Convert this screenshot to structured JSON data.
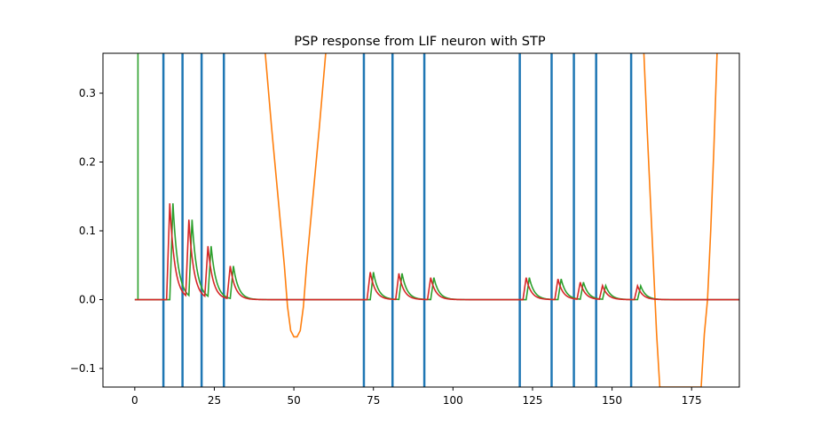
{
  "chart_data": {
    "type": "line",
    "title": "PSP response from LIF neuron with STP",
    "xlabel": "",
    "ylabel": "",
    "xlim": [
      -10,
      190
    ],
    "ylim": [
      -0.127,
      0.358
    ],
    "x_ticks": [
      0,
      25,
      50,
      75,
      100,
      125,
      150,
      175
    ],
    "x_tick_labels": [
      "0",
      "25",
      "50",
      "75",
      "100",
      "125",
      "150",
      "175"
    ],
    "y_ticks": [
      -0.1,
      0.0,
      0.1,
      0.2,
      0.3
    ],
    "y_tick_labels": [
      "−0.1",
      "0.0",
      "0.1",
      "0.2",
      "0.3"
    ],
    "grid": false,
    "legend": "none",
    "colors": {
      "spikes": "#1f77b4",
      "membrane": "#ff7f0e",
      "psp_a": "#2ca02c",
      "psp_b": "#d62728"
    },
    "spike_times": [
      9,
      15,
      21,
      28,
      72,
      81,
      91,
      121,
      131,
      138,
      145,
      156
    ],
    "series": [
      {
        "color_key": "membrane",
        "x": [
          41,
          43,
          45,
          47,
          48,
          49,
          50,
          51,
          52,
          53,
          54,
          56,
          58,
          60,
          160,
          161,
          162,
          163,
          164,
          165,
          178,
          179,
          180,
          181,
          182,
          183
        ],
        "y": [
          0.358,
          0.25,
          0.15,
          0.05,
          -0.01,
          -0.045,
          -0.054,
          -0.054,
          -0.045,
          -0.01,
          0.05,
          0.15,
          0.25,
          0.358,
          0.358,
          0.25,
          0.15,
          0.05,
          -0.05,
          -0.127,
          -0.127,
          -0.05,
          0.0,
          0.1,
          0.22,
          0.358
        ]
      },
      {
        "color_key": "psp_a",
        "peaks": [
          [
            12,
            0.14
          ],
          [
            18,
            0.113
          ],
          [
            24,
            0.075
          ],
          [
            31,
            0.048
          ],
          [
            75,
            0.04
          ],
          [
            84,
            0.038
          ],
          [
            94,
            0.032
          ],
          [
            124,
            0.032
          ],
          [
            134,
            0.03
          ],
          [
            141,
            0.025
          ],
          [
            148,
            0.02
          ],
          [
            159,
            0.02
          ]
        ]
      },
      {
        "color_key": "psp_b",
        "peaks": [
          [
            11,
            0.14
          ],
          [
            17,
            0.113
          ],
          [
            23,
            0.075
          ],
          [
            30,
            0.048
          ],
          [
            74,
            0.04
          ],
          [
            83,
            0.038
          ],
          [
            93,
            0.032
          ],
          [
            123,
            0.032
          ],
          [
            133,
            0.03
          ],
          [
            140,
            0.025
          ],
          [
            147,
            0.02
          ],
          [
            158,
            0.02
          ]
        ]
      }
    ],
    "green_onset_spike": {
      "x": 1,
      "y_top": 0.358
    }
  }
}
